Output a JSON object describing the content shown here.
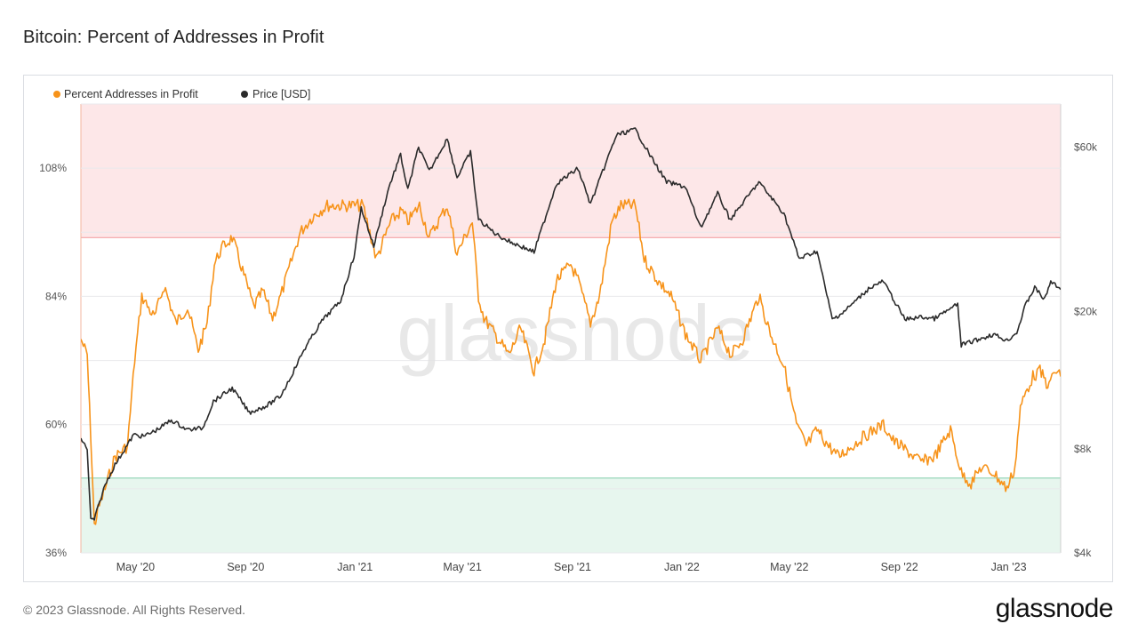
{
  "page": {
    "title": "Bitcoin: Percent of Addresses in Profit",
    "footer": "© 2023 Glassnode. All Rights Reserved.",
    "brand_logo_text": "glassnode",
    "watermark": "glassnode"
  },
  "chart_data": {
    "type": "line",
    "legend_position": "top-left",
    "grid": true,
    "series": [
      {
        "name": "Percent Addresses in Profit",
        "color": "#f7931a",
        "axis": "left"
      },
      {
        "name": "Price [USD]",
        "color": "#2b2b2b",
        "axis": "right",
        "scale": "log"
      }
    ],
    "x": {
      "start": "2020-03-01",
      "end": "2023-02-28",
      "tick_labels": [
        "May '20",
        "Sep '20",
        "Jan '21",
        "May '21",
        "Sep '21",
        "Jan '22",
        "May '22",
        "Sep '22",
        "Jan '23"
      ],
      "tick_dates": [
        "2020-05-01",
        "2020-09-01",
        "2021-01-01",
        "2021-05-01",
        "2021-09-01",
        "2022-01-01",
        "2022-05-01",
        "2022-09-01",
        "2023-01-01"
      ]
    },
    "y_left": {
      "ylim": [
        36,
        120
      ],
      "ticks": [
        36,
        60,
        84,
        108
      ],
      "tick_labels": [
        "36%",
        "60%",
        "84%",
        "108%"
      ]
    },
    "y_right": {
      "scale": "log",
      "ylim": [
        4000,
        80000
      ],
      "ticks": [
        4000,
        8000,
        20000,
        60000
      ],
      "tick_labels": [
        "$4k",
        "$8k",
        "$20k",
        "$60k"
      ]
    },
    "bands": [
      {
        "name": "high-zone",
        "from": 95,
        "to": 120,
        "color": "#fde7e8",
        "line_color": "#f4a3a5"
      },
      {
        "name": "low-zone",
        "from": 36,
        "to": 50,
        "color": "#e7f6ee",
        "line_color": "#8fd3b3"
      }
    ],
    "percent_in_profit": [
      [
        "2020-03-01",
        76
      ],
      [
        "2020-03-08",
        73
      ],
      [
        "2020-03-12",
        58
      ],
      [
        "2020-03-16",
        41
      ],
      [
        "2020-03-20",
        44
      ],
      [
        "2020-03-28",
        48
      ],
      [
        "2020-04-08",
        54
      ],
      [
        "2020-04-22",
        56
      ],
      [
        "2020-04-30",
        72
      ],
      [
        "2020-05-08",
        84
      ],
      [
        "2020-05-22",
        80
      ],
      [
        "2020-06-02",
        86
      ],
      [
        "2020-06-15",
        79
      ],
      [
        "2020-06-28",
        82
      ],
      [
        "2020-07-10",
        74
      ],
      [
        "2020-07-20",
        79
      ],
      [
        "2020-07-28",
        90
      ],
      [
        "2020-08-05",
        93
      ],
      [
        "2020-08-17",
        95
      ],
      [
        "2020-08-30",
        88
      ],
      [
        "2020-09-10",
        82
      ],
      [
        "2020-09-20",
        85
      ],
      [
        "2020-10-01",
        80
      ],
      [
        "2020-10-10",
        84
      ],
      [
        "2020-10-21",
        90
      ],
      [
        "2020-11-01",
        96
      ],
      [
        "2020-11-15",
        99
      ],
      [
        "2020-12-01",
        101
      ],
      [
        "2020-12-15",
        101
      ],
      [
        "2021-01-01",
        101
      ],
      [
        "2021-01-10",
        101
      ],
      [
        "2021-01-25",
        91
      ],
      [
        "2021-02-10",
        98
      ],
      [
        "2021-02-22",
        100
      ],
      [
        "2021-03-01",
        98
      ],
      [
        "2021-03-14",
        101
      ],
      [
        "2021-03-25",
        95
      ],
      [
        "2021-04-14",
        101
      ],
      [
        "2021-04-25",
        92
      ],
      [
        "2021-05-12",
        98
      ],
      [
        "2021-05-19",
        84
      ],
      [
        "2021-05-25",
        80
      ],
      [
        "2021-06-10",
        76
      ],
      [
        "2021-06-22",
        73
      ],
      [
        "2021-07-05",
        78
      ],
      [
        "2021-07-20",
        70
      ],
      [
        "2021-08-01",
        76
      ],
      [
        "2021-08-14",
        87
      ],
      [
        "2021-08-30",
        90
      ],
      [
        "2021-09-07",
        87
      ],
      [
        "2021-09-21",
        79
      ],
      [
        "2021-10-01",
        84
      ],
      [
        "2021-10-15",
        98
      ],
      [
        "2021-10-25",
        101
      ],
      [
        "2021-11-10",
        101
      ],
      [
        "2021-11-20",
        91
      ],
      [
        "2021-12-05",
        87
      ],
      [
        "2021-12-20",
        84
      ],
      [
        "2022-01-05",
        77
      ],
      [
        "2022-01-22",
        72
      ],
      [
        "2022-02-10",
        78
      ],
      [
        "2022-02-25",
        73
      ],
      [
        "2022-03-10",
        76
      ],
      [
        "2022-03-28",
        84
      ],
      [
        "2022-04-10",
        77
      ],
      [
        "2022-04-25",
        71
      ],
      [
        "2022-05-09",
        60
      ],
      [
        "2022-05-20",
        56
      ],
      [
        "2022-06-01",
        59
      ],
      [
        "2022-06-14",
        56
      ],
      [
        "2022-06-25",
        54
      ],
      [
        "2022-07-10",
        56
      ],
      [
        "2022-07-25",
        58
      ],
      [
        "2022-08-14",
        60
      ],
      [
        "2022-08-25",
        57
      ],
      [
        "2022-09-10",
        55
      ],
      [
        "2022-09-25",
        53
      ],
      [
        "2022-10-10",
        54
      ],
      [
        "2022-10-28",
        59
      ],
      [
        "2022-11-09",
        51
      ],
      [
        "2022-11-20",
        49
      ],
      [
        "2022-12-01",
        52
      ],
      [
        "2022-12-15",
        51
      ],
      [
        "2022-12-30",
        48
      ],
      [
        "2023-01-08",
        52
      ],
      [
        "2023-01-14",
        63
      ],
      [
        "2023-01-20",
        66
      ],
      [
        "2023-01-28",
        69
      ],
      [
        "2023-02-05",
        70
      ],
      [
        "2023-02-15",
        67
      ],
      [
        "2023-02-20",
        70
      ],
      [
        "2023-02-28",
        69
      ]
    ],
    "price_usd": [
      [
        "2020-03-01",
        8600
      ],
      [
        "2020-03-08",
        8000
      ],
      [
        "2020-03-12",
        5000
      ],
      [
        "2020-03-16",
        5000
      ],
      [
        "2020-03-28",
        6300
      ],
      [
        "2020-04-08",
        7200
      ],
      [
        "2020-04-29",
        8800
      ],
      [
        "2020-05-10",
        8700
      ],
      [
        "2020-05-25",
        9100
      ],
      [
        "2020-06-10",
        9700
      ],
      [
        "2020-06-28",
        9100
      ],
      [
        "2020-07-15",
        9200
      ],
      [
        "2020-07-27",
        11000
      ],
      [
        "2020-08-17",
        12000
      ],
      [
        "2020-09-05",
        10200
      ],
      [
        "2020-09-25",
        10700
      ],
      [
        "2020-10-10",
        11400
      ],
      [
        "2020-10-21",
        12900
      ],
      [
        "2020-11-05",
        15500
      ],
      [
        "2020-11-25",
        18800
      ],
      [
        "2020-12-16",
        21500
      ],
      [
        "2020-12-31",
        29000
      ],
      [
        "2021-01-08",
        40000
      ],
      [
        "2021-01-22",
        31000
      ],
      [
        "2021-02-08",
        46000
      ],
      [
        "2021-02-21",
        57000
      ],
      [
        "2021-03-01",
        45000
      ],
      [
        "2021-03-13",
        60000
      ],
      [
        "2021-03-25",
        51000
      ],
      [
        "2021-04-14",
        63500
      ],
      [
        "2021-04-25",
        49000
      ],
      [
        "2021-05-10",
        58000
      ],
      [
        "2021-05-19",
        37000
      ],
      [
        "2021-06-08",
        33500
      ],
      [
        "2021-06-22",
        32000
      ],
      [
        "2021-07-20",
        29800
      ],
      [
        "2021-08-14",
        47000
      ],
      [
        "2021-09-07",
        52000
      ],
      [
        "2021-09-21",
        41000
      ],
      [
        "2021-10-20",
        65000
      ],
      [
        "2021-11-10",
        67500
      ],
      [
        "2021-11-28",
        56000
      ],
      [
        "2021-12-15",
        47500
      ],
      [
        "2022-01-05",
        46000
      ],
      [
        "2022-01-22",
        35000
      ],
      [
        "2022-02-10",
        44000
      ],
      [
        "2022-02-24",
        37000
      ],
      [
        "2022-03-28",
        47500
      ],
      [
        "2022-04-25",
        38500
      ],
      [
        "2022-05-12",
        28500
      ],
      [
        "2022-06-01",
        30000
      ],
      [
        "2022-06-18",
        19000
      ],
      [
        "2022-07-01",
        20000
      ],
      [
        "2022-07-30",
        23500
      ],
      [
        "2022-08-14",
        24500
      ],
      [
        "2022-09-07",
        19000
      ],
      [
        "2022-09-25",
        19300
      ],
      [
        "2022-10-10",
        19100
      ],
      [
        "2022-11-05",
        21000
      ],
      [
        "2022-11-09",
        16000
      ],
      [
        "2022-12-15",
        17200
      ],
      [
        "2022-12-30",
        16500
      ],
      [
        "2023-01-10",
        17400
      ],
      [
        "2023-01-20",
        21000
      ],
      [
        "2023-01-30",
        23500
      ],
      [
        "2023-02-10",
        21700
      ],
      [
        "2023-02-17",
        24500
      ],
      [
        "2023-02-28",
        23200
      ]
    ]
  }
}
